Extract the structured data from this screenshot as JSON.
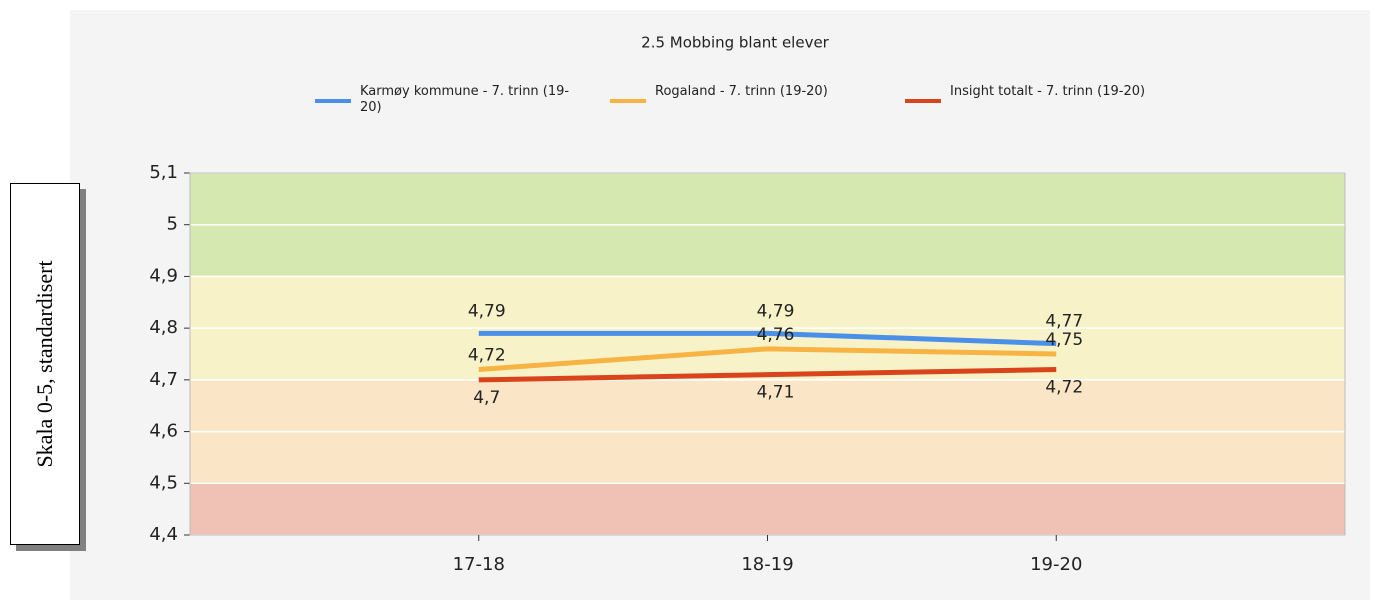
{
  "chart_data": {
    "type": "line",
    "title": "2.5 Mobbing blant elever",
    "ylabel": "Skala 0-5, standardisert",
    "categories": [
      "17-18",
      "18-19",
      "19-20"
    ],
    "series": [
      {
        "name": "Karmøy kommune - 7. trinn (19-20)",
        "color": "#4a90e8",
        "values": [
          4.79,
          4.79,
          4.77
        ],
        "value_labels": [
          "4,79",
          "4,79",
          "4,77"
        ]
      },
      {
        "name": "Rogaland - 7. trinn (19-20)",
        "color": "#f7b444",
        "values": [
          4.72,
          4.76,
          4.75
        ],
        "value_labels": [
          "4,72",
          "4,76",
          "4,75"
        ]
      },
      {
        "name": "Insight totalt - 7. trinn (19-20)",
        "color": "#d9441c",
        "values": [
          4.7,
          4.71,
          4.72
        ],
        "value_labels": [
          "4,7",
          "4,71",
          "4,72"
        ]
      }
    ],
    "bands": [
      {
        "from": 4.9,
        "to": 5.1,
        "color": "#d5e8b0"
      },
      {
        "from": 4.7,
        "to": 4.9,
        "color": "#f8f2c8"
      },
      {
        "from": 4.5,
        "to": 4.7,
        "color": "#fae6c6"
      },
      {
        "from": 4.4,
        "to": 4.5,
        "color": "#f0c2b6"
      }
    ],
    "ylim": [
      4.4,
      5.1
    ],
    "yticks": [
      {
        "value": 4.4,
        "label": "4,4"
      },
      {
        "value": 4.5,
        "label": "4,5"
      },
      {
        "value": 4.6,
        "label": "4,6"
      },
      {
        "value": 4.7,
        "label": "4,7"
      },
      {
        "value": 4.8,
        "label": "4,8"
      },
      {
        "value": 4.9,
        "label": "4,9"
      },
      5,
      {
        "value": 5.1,
        "label": "5,1"
      }
    ],
    "grid": true
  }
}
